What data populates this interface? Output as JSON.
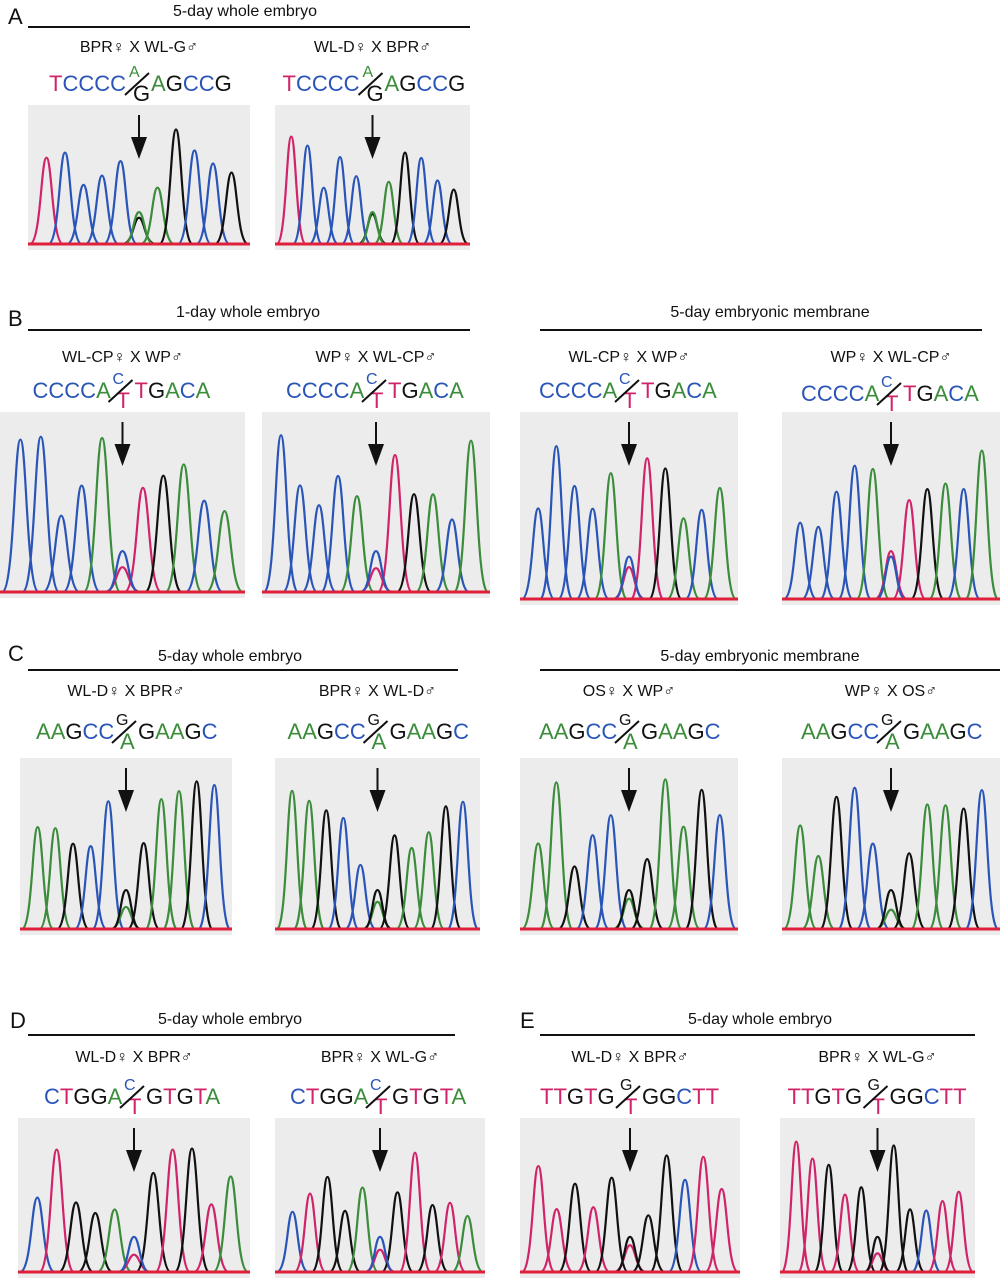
{
  "panels": [
    {
      "label": "A",
      "groups": [
        {
          "title": "5-day whole embryo",
          "items": [
            {
              "cross": "BPR♀ X WL-G♂",
              "sequence": {
                "prefix": "TCCCC",
                "top": "A",
                "bottom": "G",
                "suffix": "AGCCG"
              }
            },
            {
              "cross": "WL-D♀ X BPR♂",
              "sequence": {
                "prefix": "TCCCC",
                "top": "A",
                "bottom": "G",
                "suffix": "AGCCG"
              }
            }
          ]
        }
      ]
    },
    {
      "label": "B",
      "groups": [
        {
          "title": "1-day whole embryo",
          "items": [
            {
              "cross": "WL-CP♀ X WP♂",
              "sequence": {
                "prefix": "CCCCA",
                "top": "C",
                "bottom": "T",
                "suffix": "TGACA"
              }
            },
            {
              "cross": "WP♀ X WL-CP♂",
              "sequence": {
                "prefix": "CCCCA",
                "top": "C",
                "bottom": "T",
                "suffix": "TGACA"
              }
            }
          ]
        },
        {
          "title": "5-day embryonic membrane",
          "items": [
            {
              "cross": "WL-CP♀ X WP♂",
              "sequence": {
                "prefix": "CCCCA",
                "top": "C",
                "bottom": "T",
                "suffix": "TGACA"
              }
            },
            {
              "cross": "WP♀ X WL-CP♂",
              "sequence": {
                "prefix": "CCCCA",
                "top": "C",
                "bottom": "T",
                "suffix": "TGACA"
              }
            }
          ]
        }
      ]
    },
    {
      "label": "C",
      "groups": [
        {
          "title": "5-day whole embryo",
          "items": [
            {
              "cross": "WL-D♀ X BPR♂",
              "sequence": {
                "prefix": "AAGCC",
                "top": "G",
                "bottom": "A",
                "suffix": "GAAGC"
              }
            },
            {
              "cross": "BPR♀ X WL-D♂",
              "sequence": {
                "prefix": "AAGCC",
                "top": "G",
                "bottom": "A",
                "suffix": "GAAGC"
              }
            }
          ]
        },
        {
          "title": "5-day embryonic membrane",
          "items": [
            {
              "cross": "OS♀ X WP♂",
              "sequence": {
                "prefix": "AAGCC",
                "top": "G",
                "bottom": "A",
                "suffix": "GAAGC"
              }
            },
            {
              "cross": "WP♀ X OS♂",
              "sequence": {
                "prefix": "AAGCC",
                "top": "G",
                "bottom": "A",
                "suffix": "GAAGC"
              }
            }
          ]
        }
      ]
    },
    {
      "label": "D",
      "groups": [
        {
          "title": "5-day whole embryo",
          "items": [
            {
              "cross": "WL-D♀ X BPR♂",
              "sequence": {
                "prefix": "CTGGA",
                "top": "C",
                "bottom": "T",
                "suffix": "GTGTA"
              }
            },
            {
              "cross": "BPR♀ X WL-G♂",
              "sequence": {
                "prefix": "CTGGA",
                "top": "C",
                "bottom": "T",
                "suffix": "GTGTA"
              }
            }
          ]
        }
      ]
    },
    {
      "label": "E",
      "groups": [
        {
          "title": "5-day whole embryo",
          "items": [
            {
              "cross": "WL-D♀ X BPR♂",
              "sequence": {
                "prefix": "TTGTG",
                "top": "G",
                "bottom": "T",
                "suffix": "GGCTT"
              }
            },
            {
              "cross": "BPR♀ X WL-G♂",
              "sequence": {
                "prefix": "TTGTG",
                "top": "G",
                "bottom": "T",
                "suffix": "GGCTT"
              }
            }
          ]
        }
      ]
    }
  ]
}
